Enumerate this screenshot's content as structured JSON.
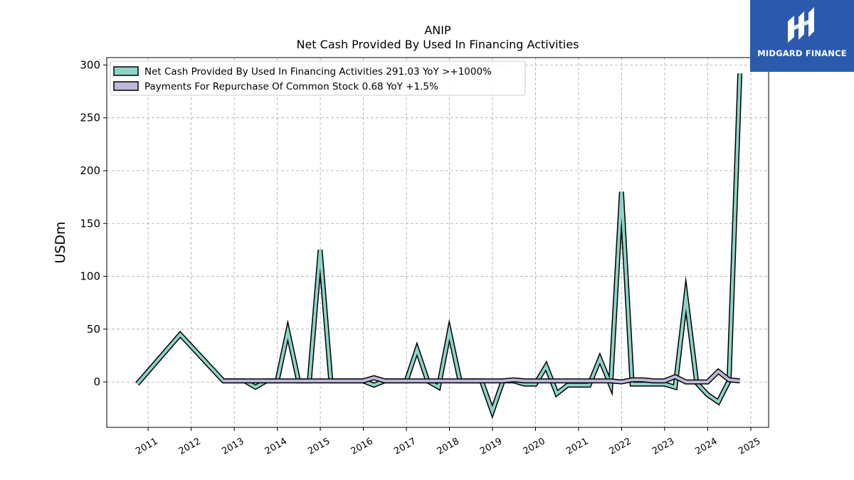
{
  "chart_data": {
    "type": "line",
    "title": "ANIP",
    "subtitle": "Net Cash Provided By Used In Financing Activities",
    "xlabel": "",
    "ylabel": "USDm",
    "ylim": [
      -43,
      307
    ],
    "yticks": [
      0,
      50,
      100,
      150,
      200,
      250,
      300
    ],
    "xticks": [
      "2011",
      "2012",
      "2013",
      "2014",
      "2015",
      "2016",
      "2017",
      "2018",
      "2019",
      "2020",
      "2021",
      "2022",
      "2023",
      "2024",
      "2025"
    ],
    "xlim": [
      "2010-01-15",
      "2025-06-01"
    ],
    "grid": true,
    "legend_position": "top-left",
    "series": [
      {
        "name": "Net Cash Provided By Used In Financing Activities",
        "legend": "Net Cash Provided By Used In Financing Activities  291.03 YoY >+1000%",
        "color": "#8dd3c7",
        "points": [
          [
            "2010-09-30",
            -2
          ],
          [
            "2011-09-30",
            45
          ],
          [
            "2012-09-30",
            1
          ],
          [
            "2012-12-31",
            1
          ],
          [
            "2013-03-31",
            1
          ],
          [
            "2013-06-30",
            -5
          ],
          [
            "2013-09-30",
            1
          ],
          [
            "2013-12-31",
            1
          ],
          [
            "2014-03-31",
            48
          ],
          [
            "2014-06-30",
            1
          ],
          [
            "2014-09-30",
            1
          ],
          [
            "2014-12-31",
            125
          ],
          [
            "2015-03-31",
            1
          ],
          [
            "2015-06-30",
            1
          ],
          [
            "2015-09-30",
            1
          ],
          [
            "2015-12-31",
            1
          ],
          [
            "2016-03-31",
            -3
          ],
          [
            "2016-06-30",
            1
          ],
          [
            "2016-09-30",
            1
          ],
          [
            "2016-12-31",
            1
          ],
          [
            "2017-03-31",
            31
          ],
          [
            "2017-06-30",
            1
          ],
          [
            "2017-09-30",
            -5
          ],
          [
            "2017-12-31",
            48
          ],
          [
            "2018-03-31",
            1
          ],
          [
            "2018-06-30",
            1
          ],
          [
            "2018-09-30",
            1
          ],
          [
            "2018-12-31",
            -28
          ],
          [
            "2019-03-31",
            1
          ],
          [
            "2019-06-30",
            1
          ],
          [
            "2019-09-30",
            -2
          ],
          [
            "2019-12-31",
            -2
          ],
          [
            "2020-03-31",
            15
          ],
          [
            "2020-06-30",
            -11
          ],
          [
            "2020-09-30",
            -3
          ],
          [
            "2020-12-31",
            -3
          ],
          [
            "2021-03-31",
            -3
          ],
          [
            "2021-06-30",
            22
          ],
          [
            "2021-09-30",
            -3
          ],
          [
            "2021-12-31",
            180
          ],
          [
            "2022-03-31",
            -2
          ],
          [
            "2022-06-30",
            -2
          ],
          [
            "2022-09-30",
            -2
          ],
          [
            "2022-12-31",
            -2
          ],
          [
            "2023-03-31",
            -5
          ],
          [
            "2023-06-30",
            81
          ],
          [
            "2023-09-30",
            -1
          ],
          [
            "2023-12-31",
            -12
          ],
          [
            "2024-03-31",
            -19
          ],
          [
            "2024-06-30",
            1
          ],
          [
            "2024-09-30",
            292
          ]
        ]
      },
      {
        "name": "Payments For Repurchase Of Common Stock",
        "legend": "Payments For Repurchase Of Common Stock  0.68 YoY +1.5%",
        "color": "#bebada",
        "points": [
          [
            "2012-09-30",
            1
          ],
          [
            "2012-12-31",
            1
          ],
          [
            "2013-03-31",
            1
          ],
          [
            "2013-06-30",
            1
          ],
          [
            "2013-09-30",
            1
          ],
          [
            "2013-12-31",
            1
          ],
          [
            "2014-03-31",
            1
          ],
          [
            "2014-06-30",
            1
          ],
          [
            "2014-09-30",
            1
          ],
          [
            "2014-12-31",
            1
          ],
          [
            "2015-03-31",
            1
          ],
          [
            "2015-06-30",
            1
          ],
          [
            "2015-09-30",
            1
          ],
          [
            "2015-12-31",
            1
          ],
          [
            "2016-03-31",
            4
          ],
          [
            "2016-06-30",
            1
          ],
          [
            "2016-09-30",
            1
          ],
          [
            "2016-12-31",
            1
          ],
          [
            "2017-03-31",
            1
          ],
          [
            "2017-06-30",
            1
          ],
          [
            "2017-09-30",
            1
          ],
          [
            "2017-12-31",
            1
          ],
          [
            "2018-03-31",
            1
          ],
          [
            "2018-06-30",
            1
          ],
          [
            "2018-09-30",
            1
          ],
          [
            "2018-12-31",
            1
          ],
          [
            "2019-03-31",
            1
          ],
          [
            "2019-06-30",
            2
          ],
          [
            "2019-09-30",
            1
          ],
          [
            "2019-12-31",
            1
          ],
          [
            "2020-03-31",
            1
          ],
          [
            "2020-06-30",
            1
          ],
          [
            "2020-09-30",
            1
          ],
          [
            "2020-12-31",
            1
          ],
          [
            "2021-03-31",
            1
          ],
          [
            "2021-06-30",
            1
          ],
          [
            "2021-09-30",
            1
          ],
          [
            "2021-12-31",
            0
          ],
          [
            "2022-03-31",
            2
          ],
          [
            "2022-06-30",
            2
          ],
          [
            "2022-09-30",
            1
          ],
          [
            "2022-12-31",
            1
          ],
          [
            "2023-03-31",
            5
          ],
          [
            "2023-06-30",
            0
          ],
          [
            "2023-09-30",
            0
          ],
          [
            "2023-12-31",
            0
          ],
          [
            "2024-03-31",
            10
          ],
          [
            "2024-06-30",
            2
          ],
          [
            "2024-09-30",
            1
          ]
        ]
      }
    ]
  },
  "brand": {
    "name": "MIDGARD FINANCE",
    "color": "#2b5aad",
    "icon": "midgard-logo-icon"
  }
}
